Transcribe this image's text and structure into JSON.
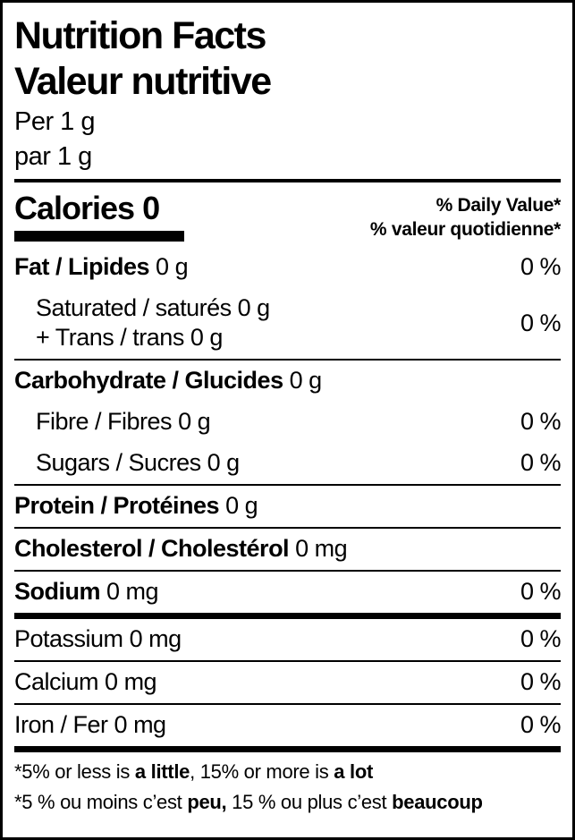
{
  "label": {
    "title_en": "Nutrition Facts",
    "title_fr": "Valeur nutritive",
    "serving_en": "Per 1 g",
    "serving_fr": "par 1 g",
    "calories_word": "Calories",
    "calories_value": "0",
    "dv_header_en": "% Daily Value*",
    "dv_header_fr": "% valeur quotidienne*",
    "rows": {
      "fat": {
        "label": "Fat / Lipides",
        "amount": "0 g",
        "percent": "0 %"
      },
      "saturated": {
        "line1_label": "Saturated / saturés",
        "line1_amount": "0 g",
        "line2_label": "+ Trans / trans",
        "line2_amount": "0 g",
        "percent": "0 %"
      },
      "carbohydrate": {
        "label": "Carbohydrate / Glucides",
        "amount": "0 g"
      },
      "fibre": {
        "label": "Fibre / Fibres",
        "amount": "0 g",
        "percent": "0 %"
      },
      "sugars": {
        "label": "Sugars / Sucres",
        "amount": "0 g",
        "percent": "0 %"
      },
      "protein": {
        "label": "Protein / Protéines",
        "amount": "0 g"
      },
      "cholesterol": {
        "label": "Cholesterol / Cholestérol",
        "amount": "0 mg"
      },
      "sodium": {
        "label": "Sodium",
        "amount": "0 mg",
        "percent": "0 %"
      },
      "potassium": {
        "label": "Potassium",
        "amount": "0 mg",
        "percent": "0 %"
      },
      "calcium": {
        "label": "Calcium",
        "amount": "0 mg",
        "percent": "0 %"
      },
      "iron": {
        "label": "Iron / Fer",
        "amount": "0 mg",
        "percent": "0 %"
      }
    },
    "footnote_en": {
      "pre": "*5% or less is ",
      "bold1": "a little",
      "mid": ", 15% or more is ",
      "bold2": "a lot"
    },
    "footnote_fr": {
      "pre": "*5 % ou moins c’est ",
      "bold1": "peu,",
      "mid": " 15 % ou plus c’est ",
      "bold2": "beaucoup"
    }
  }
}
